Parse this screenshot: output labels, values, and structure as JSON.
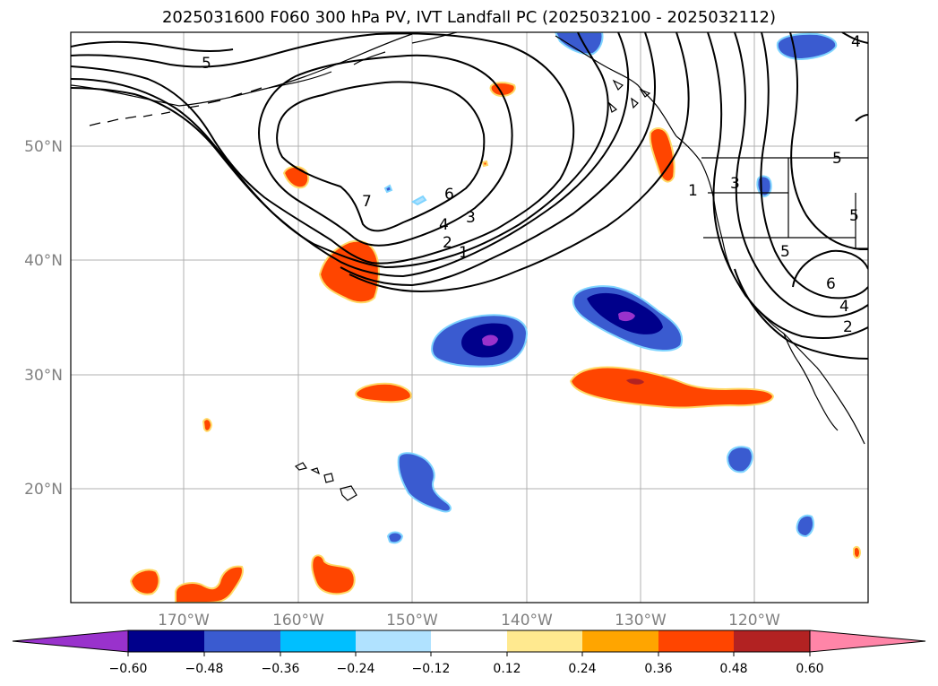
{
  "title": "2025031600 F060 300 hPa PV, IVT Landfall PC (2025032100 - 2025032112)",
  "latitude_labels": [
    "50°N",
    "40°N",
    "30°N",
    "20°N"
  ],
  "longitude_labels": [
    "170°W",
    "160°W",
    "150°W",
    "140°W",
    "130°W",
    "120°W"
  ],
  "contour_labels": [
    "5",
    "7",
    "6",
    "4",
    "3",
    "2",
    "1",
    "1",
    "3",
    "5",
    "6",
    "4",
    "2",
    "5",
    "5",
    "4"
  ],
  "colorbar": {
    "ticks": [
      "−0.60",
      "−0.48",
      "−0.36",
      "−0.24",
      "−0.12",
      "0.12",
      "0.24",
      "0.36",
      "0.48",
      "0.60"
    ],
    "colors": [
      "#9932cc",
      "#00008b",
      "#3a5bd0",
      "#00bfff",
      "#b0e2ff",
      "#ffffff",
      "#ffe98f",
      "#ffa500",
      "#ff4500",
      "#b22222",
      "#ff85a8"
    ]
  }
}
